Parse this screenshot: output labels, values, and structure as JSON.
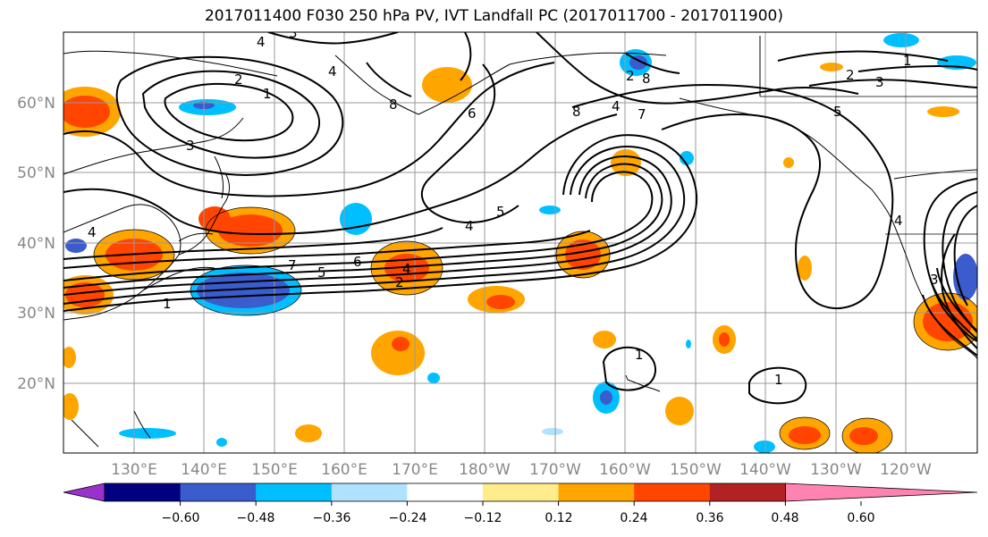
{
  "title": "2017011400 F030 250 hPa PV, IVT Landfall PC (2017011700 - 2017011900)",
  "latitude_labels": [
    "60°N",
    "50°N",
    "40°N",
    "30°N",
    "20°N"
  ],
  "longitude_labels": [
    "130°E",
    "140°E",
    "150°E",
    "160°E",
    "170°E",
    "180°W",
    "170°W",
    "160°W",
    "150°W",
    "140°W",
    "130°W",
    "120°W"
  ],
  "colorbar": {
    "colors": [
      "#9932cc",
      "#000080",
      "#3a5ccc",
      "#00bfff",
      "#b0e2ff",
      "#ffffff",
      "#ffec8b",
      "#ffa500",
      "#ff4500",
      "#b22222",
      "#ff83b0"
    ],
    "tick_labels": [
      "−0.60",
      "−0.48",
      "−0.36",
      "−0.24",
      "−0.12",
      "0.12",
      "0.24",
      "0.36",
      "0.48",
      "0.60"
    ]
  },
  "contour_labels": [
    "4",
    "3",
    "2",
    "1",
    "4",
    "4",
    "8",
    "3",
    "6",
    "8",
    "4",
    "7",
    "8",
    "2",
    "3",
    "1",
    "5",
    "4",
    "5",
    "6",
    "7",
    "5",
    "4",
    "2",
    "1",
    "2",
    "3",
    "1",
    "1",
    "4"
  ]
}
